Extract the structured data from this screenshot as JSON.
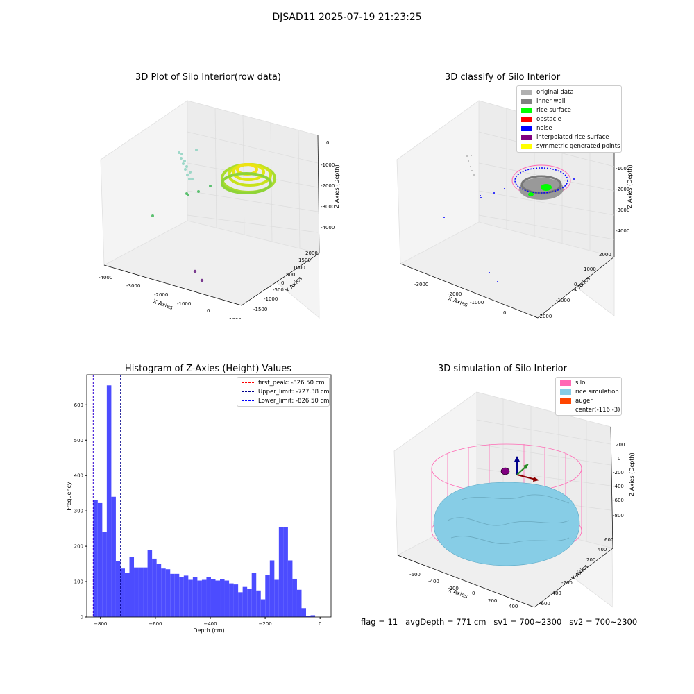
{
  "suptitle": "DJSAD11 2025-07-19 21:23:25",
  "colors": {
    "hist": "#4c4cff",
    "rice_sim": "#87cde6",
    "silo": "#ff69b4",
    "auger": "#ff4500",
    "gray": "#b0b0b0",
    "inner": "#808080",
    "surface": "#00ff00",
    "obstacle": "#ff0000",
    "noise": "#0000ff",
    "interp": "#800080",
    "sym": "#ffff00"
  },
  "p1": {
    "title": "3D Plot of Silo Interior(row data)",
    "xlabel": "X Axies",
    "ylabel": "Y Axies",
    "zlabel": "Z Axies (Depth)",
    "xticks": [
      "-4000",
      "-3000",
      "-2000",
      "-1000",
      "0",
      "1000"
    ],
    "yticks": [
      "-1500",
      "-1000",
      "-500",
      "0",
      "500",
      "1000",
      "1500",
      "2000"
    ],
    "zticks": [
      "0",
      "-1000",
      "-2000",
      "-3000",
      "-4000"
    ]
  },
  "p2": {
    "title": "3D classify of Silo Interior",
    "xlabel": "X Axies",
    "ylabel": "Y Axies",
    "zlabel": "Z Axies (Depth)",
    "xticks": [
      "-3000",
      "-2000",
      "-1000",
      "0"
    ],
    "yticks": [
      "-2000",
      "-1000",
      "0",
      "1000",
      "2000"
    ],
    "zticks": [
      "0",
      "-1000",
      "-2000",
      "-3000",
      "-4000"
    ],
    "legend": [
      {
        "label": "original data",
        "color": "#b0b0b0"
      },
      {
        "label": "inner wall",
        "color": "#808080"
      },
      {
        "label": "rice surface",
        "color": "#00ff00"
      },
      {
        "label": "obstacle",
        "color": "#ff0000"
      },
      {
        "label": "noise",
        "color": "#0000ff"
      },
      {
        "label": "interpolated rice surface",
        "color": "#800080"
      },
      {
        "label": "symmetric generated points",
        "color": "#ffff00"
      }
    ]
  },
  "p4": {
    "title": "3D simulation of Silo Interior",
    "xlabel": "X Axies",
    "ylabel": "Y Axies",
    "zlabel": "Z Axies (Depth)",
    "xticks": [
      "-600",
      "-400",
      "-200",
      "0",
      "200",
      "400"
    ],
    "yticks": [
      "-600",
      "-400",
      "-200",
      "0",
      "200",
      "400",
      "600"
    ],
    "zticks": [
      "200",
      "0",
      "-200",
      "-400",
      "-600",
      "-800"
    ],
    "legend": [
      {
        "label": "silo",
        "color": "#ff69b4"
      },
      {
        "label": "rice simulation",
        "color": "#87cde6"
      },
      {
        "label": "auger",
        "color": "#ff4500"
      },
      {
        "label": "center(-116,-3)",
        "color": ""
      }
    ]
  },
  "status_text": "flag = 11   avgDepth = 771 cm   sv1 = 700~2300   sv2 = 700~2300",
  "chart_data": {
    "type": "bar",
    "title": "Histogram of Z-Axies (Height) Values",
    "xlabel": "Depth (cm)",
    "ylabel": "Frequency",
    "xlim": [
      -850,
      40
    ],
    "ylim": [
      0,
      685
    ],
    "xticks": [
      -800,
      -600,
      -400,
      -200,
      0
    ],
    "yticks": [
      0,
      100,
      200,
      300,
      400,
      500,
      600
    ],
    "bin_start": -826.5,
    "bin_width": 16.5,
    "values": [
      330,
      322,
      240,
      655,
      340,
      157,
      137,
      125,
      170,
      140,
      140,
      140,
      190,
      165,
      150,
      137,
      135,
      122,
      122,
      112,
      117,
      105,
      112,
      103,
      105,
      112,
      107,
      103,
      107,
      103,
      95,
      92,
      70,
      85,
      80,
      125,
      75,
      50,
      118,
      160,
      105,
      255,
      255,
      160,
      108,
      77,
      25,
      2,
      5
    ],
    "lines": [
      {
        "label": "first_peak: -826.50 cm",
        "x": -826.5,
        "color": "#ff0000"
      },
      {
        "label": "Upper_limit: -727.38 cm",
        "x": -727.38,
        "color": "#00008b"
      },
      {
        "label": "Lower_limit: -826.50 cm",
        "x": -826.5,
        "color": "#0000ff"
      }
    ],
    "legend_position": "upper right"
  }
}
